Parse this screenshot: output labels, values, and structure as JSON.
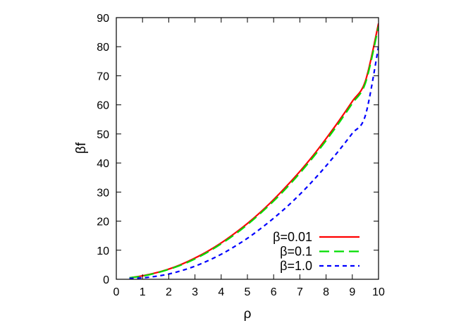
{
  "chart_data": {
    "type": "line",
    "title": "",
    "xlabel": "ρ",
    "ylabel": "βf",
    "xlim": [
      0,
      10
    ],
    "ylim": [
      0,
      90
    ],
    "xticks": [
      0,
      1,
      2,
      3,
      4,
      5,
      6,
      7,
      8,
      9,
      10
    ],
    "yticks": [
      0,
      10,
      20,
      30,
      40,
      50,
      60,
      70,
      80,
      90
    ],
    "grid": false,
    "legend_position": "bottom-right",
    "series": [
      {
        "name": "β=0.01",
        "color": "#ff0000",
        "dash": "solid",
        "x": [
          0.5,
          1,
          1.5,
          2,
          2.5,
          3,
          3.5,
          4,
          4.5,
          5,
          5.5,
          6,
          6.5,
          7,
          7.5,
          8,
          8.5,
          9,
          9.5,
          10
        ],
        "y": [
          0.5,
          1.2,
          2.2,
          3.5,
          5.2,
          7.3,
          9.7,
          12.5,
          15.7,
          19.2,
          23.1,
          27.4,
          32.1,
          37.1,
          42.5,
          48.4,
          54.6,
          61.2,
          68.2,
          88.0
        ]
      },
      {
        "name": "β=0.1",
        "color": "#00dd00",
        "dash": "long-dash",
        "x": [
          0.5,
          1,
          1.5,
          2,
          2.5,
          3,
          3.5,
          4,
          4.5,
          5,
          5.5,
          6,
          6.5,
          7,
          7.5,
          8,
          8.5,
          9,
          9.5,
          10
        ],
        "y": [
          0.5,
          1.1,
          2.1,
          3.4,
          5.0,
          7.0,
          9.4,
          12.2,
          15.3,
          18.8,
          22.7,
          26.9,
          31.5,
          36.5,
          41.9,
          47.7,
          53.9,
          60.5,
          67.5,
          87.0
        ]
      },
      {
        "name": "β=1.0",
        "color": "#0000ff",
        "dash": "short-dash",
        "x": [
          0.5,
          1,
          1.5,
          2,
          2.5,
          3,
          3.5,
          4,
          4.5,
          5,
          5.5,
          6,
          6.5,
          7,
          7.5,
          8,
          8.5,
          9,
          9.5,
          10
        ],
        "y": [
          0.3,
          0.5,
          1.0,
          1.8,
          3.0,
          4.5,
          6.4,
          8.6,
          11.2,
          14.1,
          17.4,
          21.0,
          24.9,
          29.2,
          33.9,
          39.0,
          44.4,
          50.2,
          56.4,
          80.0
        ]
      }
    ]
  }
}
